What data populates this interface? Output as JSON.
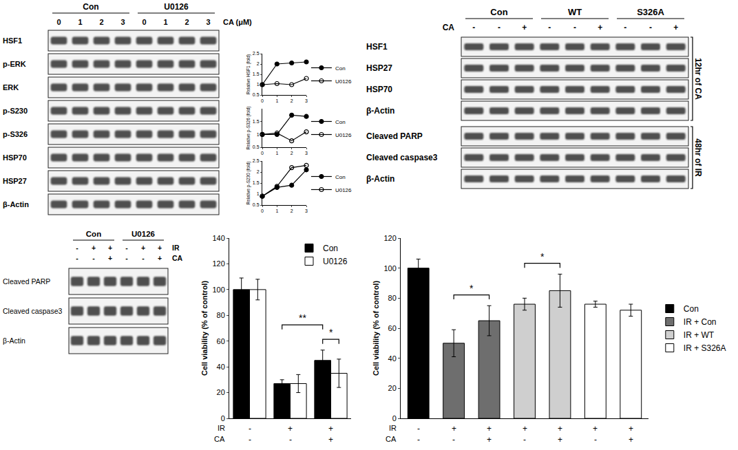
{
  "chart_data": [
    {
      "type": "line",
      "y_label": "Relative HSF1 (fold)",
      "x": [
        0,
        1,
        2,
        3
      ],
      "xlim": [
        0,
        3
      ],
      "xticks": [
        0,
        1,
        2,
        3
      ],
      "ylim": [
        0.5,
        2.5
      ],
      "yticks": [
        0.5,
        1,
        1.5,
        2,
        2.5
      ],
      "legend": "right",
      "series": [
        {
          "name": "Con",
          "color": "#000000",
          "marker": "circle",
          "values": [
            1,
            2.0,
            2.05,
            2.1
          ]
        },
        {
          "name": "U0126",
          "color": "#000000",
          "marker": "circle-open",
          "values": [
            1,
            1.05,
            1.0,
            1.3
          ]
        }
      ]
    },
    {
      "type": "line",
      "y_label": "Relative p-S326 (fold)",
      "x": [
        0,
        1,
        2,
        3
      ],
      "xlim": [
        0,
        3
      ],
      "xticks": [
        0,
        1,
        2,
        3
      ],
      "ylim": [
        0.5,
        2
      ],
      "yticks": [
        0.5,
        1,
        1.5
      ],
      "legend": "right",
      "series": [
        {
          "name": "Con",
          "color": "#000000",
          "marker": "circle",
          "values": [
            1,
            1.0,
            1.75,
            1.7
          ]
        },
        {
          "name": "U0126",
          "color": "#000000",
          "marker": "circle-open",
          "values": [
            1,
            1.05,
            0.75,
            1.1
          ]
        }
      ]
    },
    {
      "type": "line",
      "y_label": "Relative p-S230 (fold)",
      "x": [
        0,
        1,
        2,
        3
      ],
      "xlim": [
        0,
        3
      ],
      "xticks": [
        0,
        1,
        2,
        3
      ],
      "ylim": [
        0.5,
        2.5
      ],
      "yticks": [
        0.5,
        1,
        1.5,
        2,
        2.5
      ],
      "legend": "right",
      "series": [
        {
          "name": "Con",
          "color": "#000000",
          "marker": "circle",
          "values": [
            0.9,
            1.3,
            1.4,
            2.1
          ]
        },
        {
          "name": "U0126",
          "color": "#000000",
          "marker": "circle-open",
          "values": [
            0.9,
            1.35,
            2.2,
            2.3
          ]
        }
      ]
    },
    {
      "type": "bar",
      "y_label": "Cell viability (% of control)",
      "ylim": [
        0,
        140
      ],
      "yticks": [
        0,
        20,
        40,
        60,
        80,
        100,
        120,
        140
      ],
      "tick_labels": "y",
      "legend": "top right",
      "series": [
        {
          "name": "Con",
          "color": "#000000",
          "values": [
            100,
            27,
            45
          ],
          "errors": [
            9,
            3,
            8
          ]
        },
        {
          "name": "U0126",
          "color": "#ffffff",
          "values": [
            100,
            27,
            35
          ],
          "errors": [
            8,
            7,
            11
          ]
        }
      ],
      "rows": [
        {
          "label": "IR",
          "values": [
            "-",
            "+",
            "+"
          ]
        },
        {
          "label": "CA",
          "values": [
            "-",
            "-",
            "+"
          ]
        }
      ],
      "significance": [
        {
          "text": "*",
          "from": {
            "index": 2,
            "series": "Con"
          },
          "to": {
            "index": 2,
            "series": "U0126"
          }
        },
        {
          "text": "**",
          "from": {
            "index": 1,
            "series": "Con"
          },
          "to": {
            "index": 2,
            "series": "Con"
          }
        }
      ]
    },
    {
      "type": "bar",
      "y_label": "Cell viability (% of control)",
      "ylim": [
        0,
        120
      ],
      "yticks": [
        0,
        20,
        40,
        60,
        80,
        100,
        120
      ],
      "tick_labels": "y",
      "legend": "right",
      "series": [
        {
          "name": "Con",
          "color": "#000000",
          "values": [
            100,
            null,
            null,
            null,
            null,
            null,
            null
          ],
          "errors": [
            6,
            null,
            null,
            null,
            null,
            null,
            null
          ]
        },
        {
          "name": "IR + Con",
          "color": "#6e6e6e",
          "values": [
            null,
            50,
            65,
            null,
            null,
            null,
            null
          ],
          "errors": [
            null,
            9,
            10,
            null,
            null,
            null,
            null
          ]
        },
        {
          "name": "IR + WT",
          "color": "#cfcfcf",
          "values": [
            null,
            null,
            null,
            76,
            85,
            null,
            null
          ],
          "errors": [
            null,
            null,
            null,
            4,
            11,
            null,
            null
          ]
        },
        {
          "name": "IR + S326A",
          "color": "#ffffff",
          "values": [
            null,
            null,
            null,
            null,
            null,
            76,
            72
          ],
          "errors": [
            null,
            null,
            null,
            null,
            null,
            2,
            4
          ]
        }
      ],
      "rows": [
        {
          "label": "IR",
          "values": [
            "-",
            "+",
            "+",
            "+",
            "+",
            "+",
            "+"
          ]
        },
        {
          "label": "CA",
          "values": [
            "-",
            "-",
            "+",
            "-",
            "+",
            "-",
            "+"
          ]
        }
      ],
      "significance": [
        {
          "text": "*",
          "from": {
            "index": 1
          },
          "to": {
            "index": 2
          }
        },
        {
          "text": "*",
          "from": {
            "index": 3
          },
          "to": {
            "index": 4
          }
        }
      ]
    }
  ],
  "blots": [
    {
      "groups": [
        "Con",
        "U0126"
      ],
      "lane_rows": [
        {
          "label": "CA (μM)",
          "values": [
            "0",
            "1",
            "2",
            "3",
            "0",
            "1",
            "2",
            "3"
          ]
        }
      ],
      "rows": [
        "HSF1",
        "p-ERK",
        "ERK",
        "p-S230",
        "p-S326",
        "HSP70",
        "HSP27",
        "β-Actin"
      ]
    },
    {
      "groups": [
        "Con",
        "WT",
        "S326A"
      ],
      "lane_rows": [
        {
          "label": "CA",
          "values": [
            "-",
            "-",
            "+",
            "-",
            "-",
            "+",
            "-",
            "-",
            "+"
          ]
        }
      ],
      "row_groups": [
        {
          "label": "12hr of CA",
          "rows": [
            "HSF1",
            "HSP27",
            "HSP70",
            "β-Actin"
          ]
        },
        {
          "label": "48hr of IR",
          "rows": [
            "Cleaved PARP",
            "Cleaved caspase3",
            "β-Actin"
          ]
        }
      ]
    },
    {
      "groups": [
        "Con",
        "U0126"
      ],
      "lane_rows": [
        {
          "label": "IR",
          "values": [
            "-",
            "+",
            "+",
            "-",
            "+",
            "+"
          ]
        },
        {
          "label": "CA",
          "values": [
            "-",
            "-",
            "+",
            "-",
            "-",
            "+"
          ]
        }
      ],
      "rows": [
        "Cleaved PARP",
        "Cleaved caspase3",
        "β-Actin"
      ]
    }
  ]
}
